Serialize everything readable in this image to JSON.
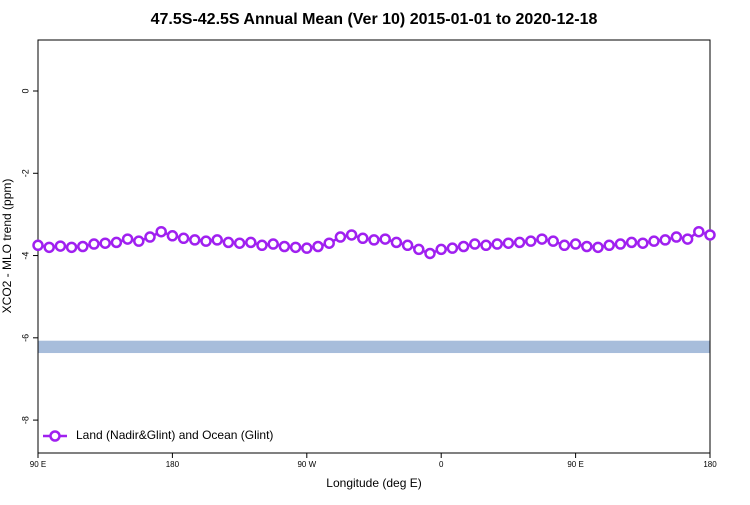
{
  "chart_data": {
    "type": "line",
    "title": "47.5S-42.5S Annual Mean (Ver 10)   2015-01-01 to 2020-12-18",
    "x_label": "Longitude (deg E)",
    "y_label": "XCO2 - MLO trend (ppm)",
    "x": [
      90,
      97.5,
      105,
      112.5,
      120,
      127.5,
      135,
      142.5,
      150,
      157.5,
      165,
      172.5,
      180,
      187.5,
      195,
      202.5,
      210,
      217.5,
      225,
      232.5,
      240,
      247.5,
      255,
      262.5,
      270,
      277.5,
      285,
      292.5,
      300,
      307.5,
      315,
      322.5,
      330,
      337.5,
      345,
      352.5,
      360,
      367.5,
      375,
      382.5,
      390,
      397.5,
      405,
      412.5,
      420,
      427.5,
      435,
      442.5,
      450,
      457.5,
      465,
      472.5,
      480,
      487.5,
      495,
      502.5,
      510,
      517.5,
      525,
      532.5,
      540
    ],
    "series": [
      {
        "name": "Land (Nadir&Glint) and Ocean (Glint)",
        "color": "#a020f0",
        "values": [
          -3.75,
          -3.8,
          -3.77,
          -3.8,
          -3.78,
          -3.72,
          -3.7,
          -3.68,
          -3.6,
          -3.65,
          -3.55,
          -3.42,
          -3.52,
          -3.58,
          -3.62,
          -3.65,
          -3.62,
          -3.68,
          -3.7,
          -3.68,
          -3.75,
          -3.72,
          -3.78,
          -3.8,
          -3.82,
          -3.78,
          -3.7,
          -3.55,
          -3.5,
          -3.58,
          -3.62,
          -3.6,
          -3.68,
          -3.75,
          -3.85,
          -3.95,
          -3.85,
          -3.82,
          -3.78,
          -3.72,
          -3.75,
          -3.72,
          -3.7,
          -3.68,
          -3.65,
          -3.6,
          -3.65,
          -3.75,
          -3.72,
          -3.78,
          -3.8,
          -3.75,
          -3.72,
          -3.68,
          -3.7,
          -3.65,
          -3.62,
          -3.55,
          -3.6,
          -3.42,
          -3.5
        ]
      }
    ],
    "band": {
      "color": "#a7bddb",
      "range": [
        -6.37,
        -6.07
      ]
    },
    "xlim": [
      90,
      540
    ],
    "xticks": [
      {
        "value": 90,
        "label": "90 E"
      },
      180,
      {
        "value": 270,
        "label": "90 W"
      },
      {
        "value": 360,
        "label": "0"
      },
      {
        "value": 450,
        "label": "90 E"
      },
      {
        "value": 540,
        "label": "180"
      }
    ],
    "ylim": [
      -8.8,
      1.24
    ],
    "yticks": [
      0,
      -2,
      -4,
      -6,
      -8
    ],
    "legend": "bottom-left"
  }
}
